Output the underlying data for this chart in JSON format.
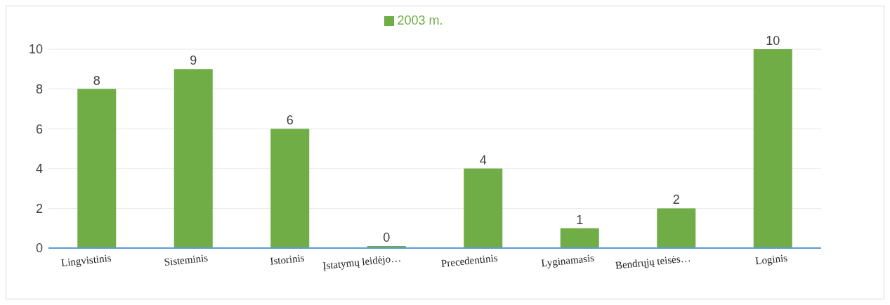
{
  "chart_data": {
    "type": "bar",
    "categories": [
      "Lingvistinis",
      "Sisteminis",
      "Istorinis",
      "Įstatymų leidėjo…",
      "Precedentinis",
      "Lyginamasis",
      "Bendrųjų teisės…",
      "Loginis"
    ],
    "series": [
      {
        "name": "2003 m.",
        "color": "#70ad47",
        "values": [
          8,
          9,
          6,
          0,
          4,
          1,
          2,
          10
        ]
      }
    ],
    "ylim": [
      0,
      10
    ],
    "yticks": [
      0,
      2,
      4,
      6,
      8,
      10
    ],
    "grid": "y",
    "legend": "top",
    "data_labels": true
  }
}
